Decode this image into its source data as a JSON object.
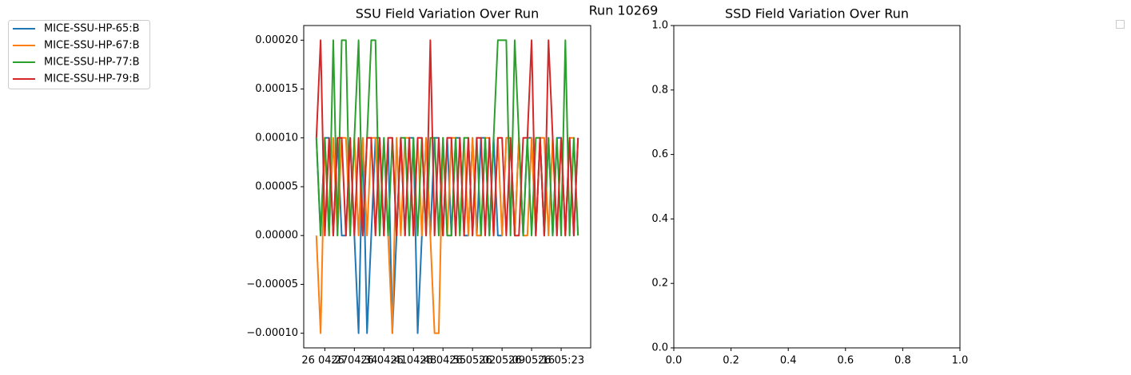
{
  "title": "Run 10269",
  "chart_data": [
    {
      "type": "line",
      "title": "SSU Field Variation Over Run",
      "x": [
        "04:25",
        "04:26",
        "04:27",
        "04:28",
        "04:29",
        "04:30",
        "04:31",
        "04:32",
        "04:33",
        "04:34",
        "04:35",
        "04:36",
        "04:37",
        "04:38",
        "04:39",
        "04:40",
        "04:41",
        "04:42",
        "04:43",
        "04:44",
        "04:45",
        "04:46",
        "04:47",
        "04:48",
        "04:49",
        "04:50",
        "04:51",
        "04:52",
        "04:53",
        "04:54",
        "04:55",
        "04:56",
        "04:57",
        "04:58",
        "04:59",
        "05:00",
        "05:01",
        "05:02",
        "05:03",
        "05:04",
        "05:05",
        "05:06",
        "05:07",
        "05:08",
        "05:09",
        "05:10",
        "05:11",
        "05:12",
        "05:13",
        "05:14",
        "05:15",
        "05:16",
        "05:17",
        "05:18",
        "05:19",
        "05:20",
        "05:21",
        "05:22",
        "05:23",
        "05:24",
        "05:25",
        "05:26",
        "05:27"
      ],
      "series": [
        {
          "name": "MICE-SSU-HP-65:B",
          "color": "#1f77b4",
          "values": [
            0.0001,
            0,
            0.0001,
            0.0001,
            0,
            0.0001,
            0,
            0,
            0.0001,
            0,
            -0.0001,
            0.0001,
            -0.0001,
            0,
            0.0001,
            0.0001,
            0,
            0.0001,
            -0.0001,
            0,
            0.0001,
            0,
            0.0001,
            0.0001,
            -0.0001,
            0,
            0.0001,
            0,
            0.0001,
            0.0001,
            0,
            0.0001,
            0,
            0.0001,
            0.0001,
            0,
            0,
            0.0001,
            0,
            0.0001,
            0.0001,
            0,
            0.0001,
            0,
            0,
            0.0001,
            0.0001,
            0,
            0.0001,
            0,
            0.0001,
            0.0001,
            0,
            0.0001,
            0,
            0.0001,
            0,
            0.0001,
            0.0001,
            0,
            0.0001,
            0,
            0.0001
          ]
        },
        {
          "name": "MICE-SSU-HP-67:B",
          "color": "#ff7f0e",
          "values": [
            0,
            -0.0001,
            0.0001,
            0,
            0.0001,
            0,
            0.0001,
            0.0001,
            0,
            0.0001,
            0,
            0.0001,
            0,
            0.0001,
            0.0001,
            0,
            0.0001,
            0,
            -0.0001,
            0.0001,
            0,
            0.0001,
            0.0001,
            0,
            0.0001,
            0,
            0.0001,
            0,
            -0.0001,
            -0.0001,
            0.0001,
            0,
            0.0001,
            0.0001,
            0,
            0.0001,
            0,
            0.0001,
            0,
            0,
            0.0001,
            0.0001,
            0,
            0.0001,
            0,
            0.0001,
            0.0001,
            0,
            0.0001,
            0,
            0,
            0.0001,
            0,
            0.0001,
            0.0001,
            0,
            0.0001,
            0,
            0.0001,
            0,
            0.0001,
            0.0001,
            0
          ]
        },
        {
          "name": "MICE-SSU-HP-77:B",
          "color": "#2ca02c",
          "values": [
            0.0001,
            0,
            0.0001,
            0,
            0.0002,
            0,
            0.0002,
            0.0002,
            0,
            0.0001,
            0.0002,
            0,
            0.0001,
            0.0002,
            0.0002,
            0,
            0.0001,
            0,
            0.0001,
            0,
            0.0001,
            0.0001,
            0,
            0.0001,
            0,
            0.0001,
            0,
            0.0001,
            0.0001,
            0,
            0.0001,
            0,
            0,
            0.0001,
            0,
            0.0001,
            0.0001,
            0,
            0.0001,
            0,
            0.0001,
            0,
            0.0001,
            0.0002,
            0.0002,
            0.0002,
            0,
            0.0002,
            0.0001,
            0,
            0.0001,
            0,
            0.0001,
            0.0001,
            0,
            0.0001,
            0,
            0.0001,
            0,
            0.0002,
            0,
            0.0001,
            0
          ]
        },
        {
          "name": "MICE-SSU-HP-79:B",
          "color": "#d62728",
          "values": [
            0.0001,
            0.0002,
            0,
            0.0001,
            0,
            0.0001,
            0.0001,
            0,
            0.0001,
            0,
            0.0001,
            0,
            0.0001,
            0.0001,
            0,
            0.0001,
            0,
            0.0001,
            0.0001,
            0,
            0.0001,
            0,
            0.0001,
            0,
            0.0001,
            0.0001,
            0,
            0.0002,
            0,
            0.0001,
            0,
            0.0001,
            0.0001,
            0,
            0.0001,
            0,
            0.0001,
            0,
            0.0001,
            0.0001,
            0,
            0.0001,
            0,
            0.0001,
            0.0001,
            0,
            0.0001,
            0,
            0,
            0.0001,
            0.0001,
            0.0002,
            0,
            0.0001,
            0,
            0.0002,
            0.0001,
            0,
            0.0001,
            0,
            0.0001,
            0,
            0.0001
          ]
        }
      ],
      "xlim": [
        "04:22",
        "05:30"
      ],
      "xticks": [
        {
          "value": "04:27",
          "label": "26 04:27"
        },
        {
          "value": "04:34",
          "label": "26 04:34"
        },
        {
          "value": "04:41",
          "label": "26 04:41"
        },
        {
          "value": "04:48",
          "label": "26 04:48"
        },
        {
          "value": "04:55",
          "label": "26 04:55"
        },
        {
          "value": "05:02",
          "label": "26 05:02"
        },
        {
          "value": "05:09",
          "label": "26 05:09"
        },
        {
          "value": "05:16",
          "label": "26 05:16"
        },
        {
          "value": "05:23",
          "label": "26 05:23"
        }
      ],
      "ylim": [
        -0.000115,
        0.000215
      ],
      "yticks": [
        {
          "value": -0.0001,
          "label": "−0.00010"
        },
        {
          "value": -5e-05,
          "label": "−0.00005"
        },
        {
          "value": 0,
          "label": "0.00000"
        },
        {
          "value": 5e-05,
          "label": "0.00005"
        },
        {
          "value": 0.0001,
          "label": "0.00010"
        },
        {
          "value": 0.00015,
          "label": "0.00015"
        },
        {
          "value": 0.0002,
          "label": "0.00020"
        }
      ]
    },
    {
      "type": "line",
      "title": "SSD Field Variation Over Run",
      "series": [],
      "xlim": [
        0,
        1
      ],
      "xticks": [
        {
          "value": 0,
          "label": "0.0"
        },
        {
          "value": 0.2,
          "label": "0.2"
        },
        {
          "value": 0.4,
          "label": "0.4"
        },
        {
          "value": 0.6,
          "label": "0.6"
        },
        {
          "value": 0.8,
          "label": "0.8"
        },
        {
          "value": 1,
          "label": "1.0"
        }
      ],
      "ylim": [
        0,
        1
      ],
      "yticks": [
        {
          "value": 0,
          "label": "0.0"
        },
        {
          "value": 0.2,
          "label": "0.2"
        },
        {
          "value": 0.4,
          "label": "0.4"
        },
        {
          "value": 0.6,
          "label": "0.6"
        },
        {
          "value": 0.8,
          "label": "0.8"
        },
        {
          "value": 1,
          "label": "1.0"
        }
      ]
    }
  ]
}
